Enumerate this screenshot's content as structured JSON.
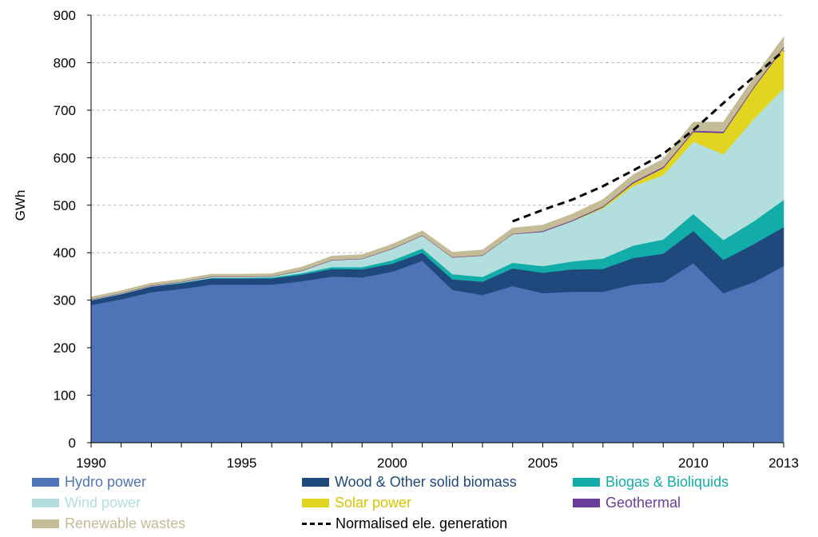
{
  "chart_data": {
    "type": "area",
    "title": "",
    "xlabel": "",
    "ylabel": "GWh",
    "ylim": [
      0,
      900
    ],
    "xlim": [
      1990,
      2013
    ],
    "yticks": [
      0,
      100,
      200,
      300,
      400,
      500,
      600,
      700,
      800,
      900
    ],
    "xtick_labels": [
      "1990",
      "1995",
      "2000",
      "2005",
      "2010",
      "2013"
    ],
    "xticks": [
      1990,
      1995,
      2000,
      2005,
      2010,
      2013
    ],
    "x": [
      1990,
      1991,
      1992,
      1993,
      1994,
      1995,
      1996,
      1997,
      1998,
      1999,
      2000,
      2001,
      2002,
      2003,
      2004,
      2005,
      2006,
      2007,
      2008,
      2009,
      2010,
      2011,
      2012,
      2013
    ],
    "series": [
      {
        "name": "Hydro power",
        "color": "#4F73B7",
        "values": [
          290,
          302,
          317,
          324,
          333,
          333,
          333,
          340,
          350,
          348,
          360,
          383,
          322,
          311,
          330,
          315,
          318,
          318,
          333,
          338,
          378,
          315,
          338,
          372
        ]
      },
      {
        "name": "Wood & Other solid biomass",
        "color": "#1F497D",
        "values": [
          10,
          11,
          12,
          12,
          13,
          13,
          13,
          14,
          16,
          17,
          17,
          17,
          22,
          28,
          37,
          43,
          47,
          48,
          56,
          60,
          68,
          70,
          80,
          82
        ]
      },
      {
        "name": "Biogas & Bioliquids",
        "color": "#12ADA8",
        "values": [
          0,
          0,
          0,
          1,
          1,
          1,
          2,
          3,
          4,
          5,
          7,
          9,
          11,
          10,
          12,
          14,
          17,
          22,
          26,
          30,
          36,
          42,
          48,
          57
        ]
      },
      {
        "name": "Wind power",
        "color": "#B2DFDD",
        "values": [
          1,
          1,
          1,
          1,
          2,
          2,
          2,
          5,
          14,
          17,
          24,
          27,
          35,
          45,
          60,
          72,
          85,
          105,
          125,
          135,
          152,
          180,
          215,
          235
        ]
      },
      {
        "name": "Solar power",
        "color": "#E2D521",
        "values": [
          0,
          0,
          0,
          0,
          0,
          0,
          0,
          0,
          0,
          0,
          0,
          0,
          0,
          0,
          0,
          0,
          0,
          3,
          6,
          15,
          20,
          45,
          65,
          85
        ]
      },
      {
        "name": "Geothermal",
        "color": "#6A3D9A",
        "values": [
          1,
          1,
          1,
          1,
          1,
          1,
          1,
          1,
          1,
          1,
          1,
          1,
          1,
          1,
          1,
          2,
          2,
          2,
          3,
          3,
          3,
          3,
          3,
          3
        ]
      },
      {
        "name": "Renewable wastes",
        "color": "#C4BC97",
        "values": [
          5,
          5,
          5,
          5,
          5,
          5,
          5,
          7,
          8,
          8,
          9,
          9,
          10,
          11,
          12,
          12,
          13,
          14,
          15,
          16,
          18,
          20,
          19,
          20
        ]
      }
    ],
    "line_series": {
      "name": "Normalised ele. generation",
      "color": "#000000",
      "style": "dashed",
      "x": [
        2004,
        2005,
        2006,
        2007,
        2008,
        2009,
        2010,
        2011,
        2012,
        2013
      ],
      "values": [
        466,
        490,
        512,
        540,
        573,
        608,
        658,
        715,
        770,
        825
      ]
    },
    "legend": [
      {
        "label": "Hydro power",
        "color": "#4F73B7",
        "text_color": "#4F73B7",
        "kind": "swatch"
      },
      {
        "label": "Wood & Other solid biomass",
        "color": "#1F497D",
        "text_color": "#1F497D",
        "kind": "swatch"
      },
      {
        "label": "Biogas & Bioliquids",
        "color": "#12ADA8",
        "text_color": "#12ADA8",
        "kind": "swatch"
      },
      {
        "label": "Wind power",
        "color": "#B2DFDD",
        "text_color": "#B2DFDD",
        "kind": "swatch"
      },
      {
        "label": "Solar power",
        "color": "#E2D521",
        "text_color": "#D9C400",
        "kind": "swatch"
      },
      {
        "label": "Geothermal",
        "color": "#6A3D9A",
        "text_color": "#6A3D9A",
        "kind": "swatch"
      },
      {
        "label": "Renewable wastes",
        "color": "#C4BC97",
        "text_color": "#C4BC97",
        "kind": "swatch"
      },
      {
        "label": "Normalised ele. generation",
        "color": "#000000",
        "text_color": "#000000",
        "kind": "dashed-line"
      }
    ],
    "legend_position": "bottom",
    "grid": "horizontal-dashed"
  }
}
